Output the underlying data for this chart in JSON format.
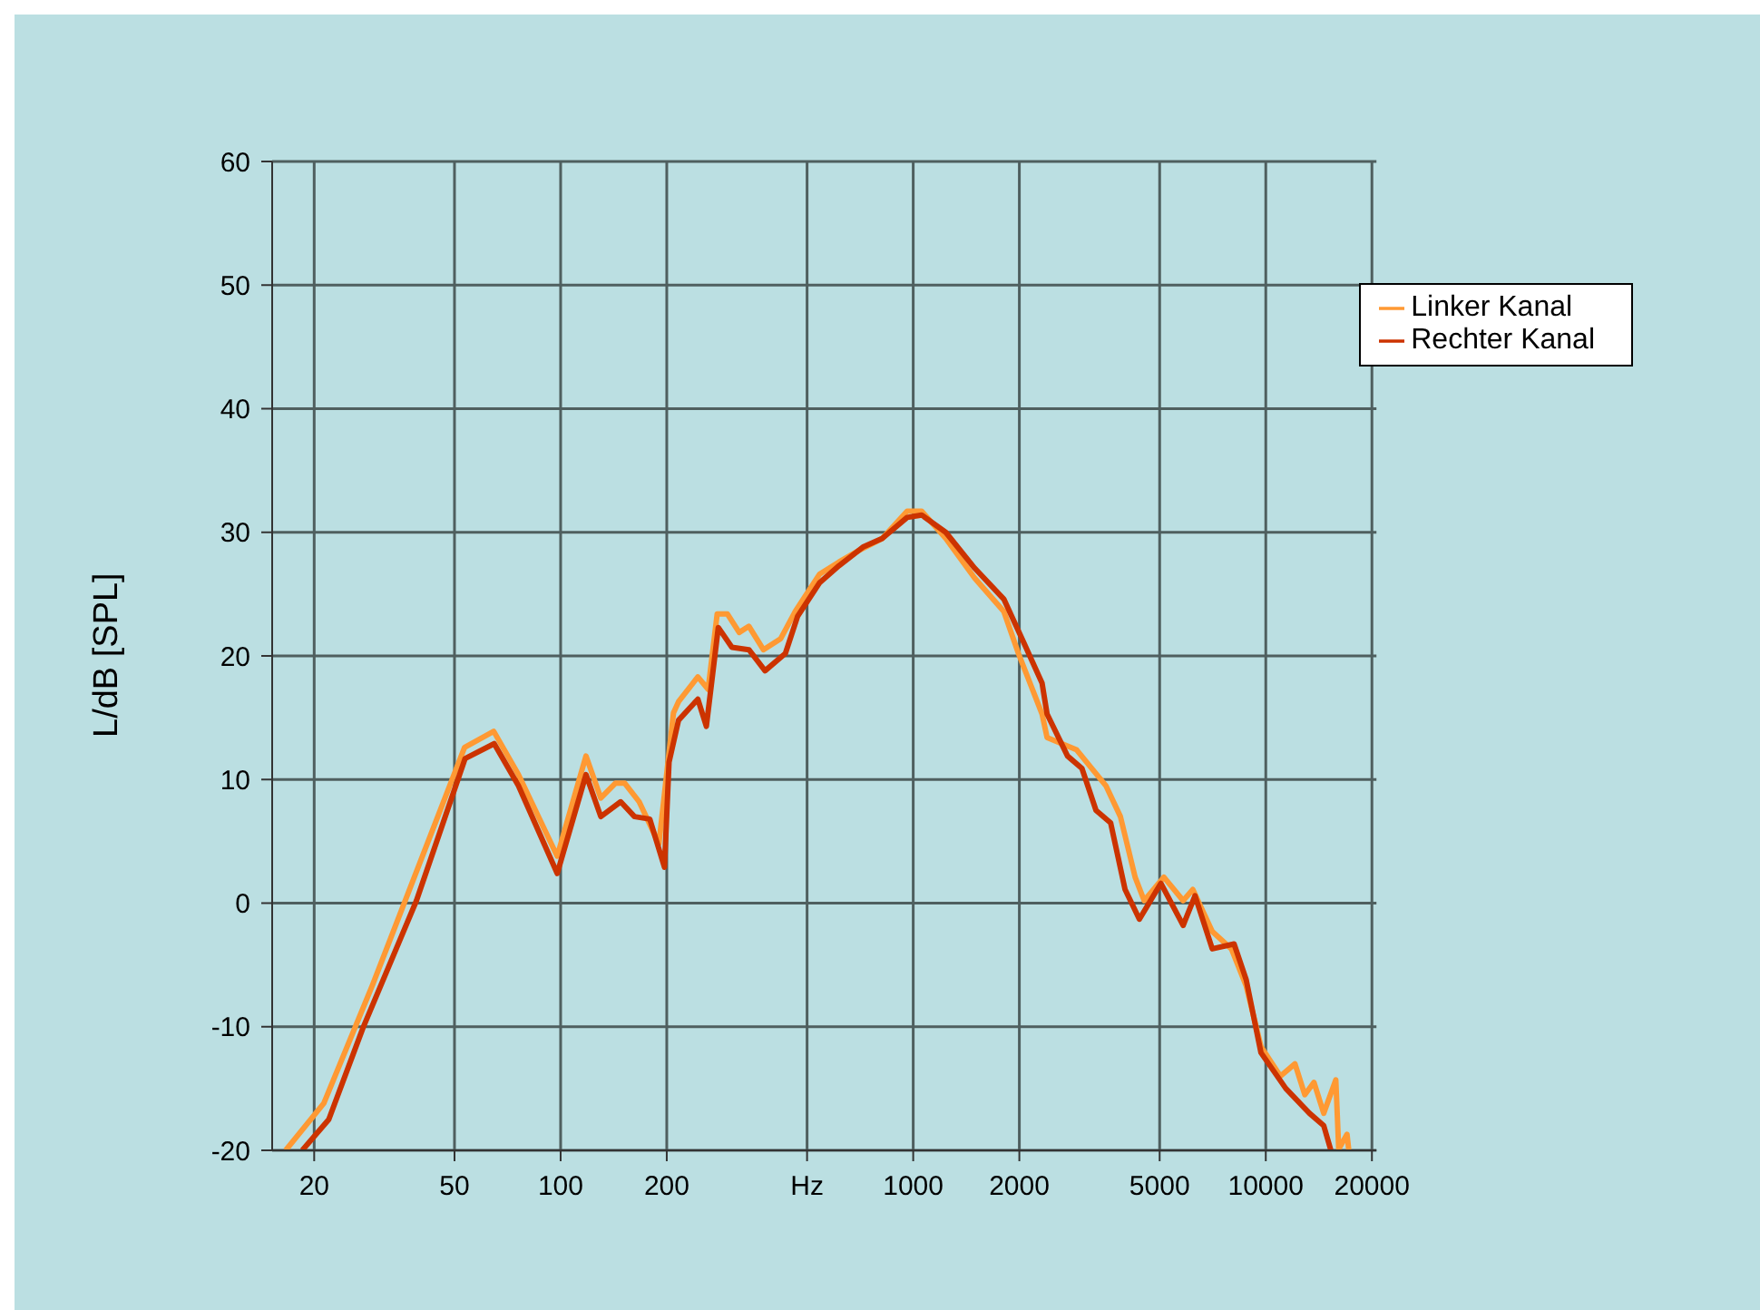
{
  "chart_data": {
    "type": "line",
    "ylabel": "L/dB [SPL]",
    "log": "x",
    "grid": true,
    "legend": "top right",
    "xlim": [
      15.2,
      20600
    ],
    "ylim": [
      -20,
      60
    ],
    "xticks": [
      20,
      50,
      100,
      200,
      {
        "value": 500,
        "label": "Hz"
      },
      1000,
      2000,
      5000,
      10000,
      20000
    ],
    "yticks": [
      -20,
      -10,
      0,
      10,
      20,
      30,
      40,
      50,
      60
    ],
    "series": [
      {
        "name": "Linker Kanal",
        "color": "#ff9933",
        "x": [
          16.6,
          21.3,
          29.3,
          53.4,
          64.6,
          75.9,
          97.8,
          118,
          130,
          143,
          152,
          167,
          190,
          209,
          216,
          245,
          262,
          278,
          297,
          321,
          342,
          376,
          421,
          463,
          542,
          616,
          699,
          817,
          961,
          1057,
          1237,
          1494,
          1807,
          1988,
          2320,
          2397,
          2908,
          3520,
          3870,
          4260,
          4520,
          5140,
          5830,
          6210,
          7050,
          7990,
          8800,
          9690,
          11000,
          12100,
          12900,
          13700,
          14600,
          15800,
          16100,
          17000,
          17200
        ],
        "values": [
          -20,
          -16.2,
          -6.6,
          12.6,
          13.9,
          10.4,
          3.8,
          11.9,
          8.5,
          9.7,
          9.7,
          8.2,
          4.8,
          15.4,
          16.3,
          18.3,
          17.3,
          23.4,
          23.4,
          21.9,
          22.4,
          20.5,
          21.4,
          23.6,
          26.6,
          27.6,
          28.5,
          29.5,
          31.7,
          31.7,
          29.5,
          26.3,
          23.6,
          20.2,
          15.3,
          13.4,
          12.4,
          9.5,
          7,
          2.1,
          0.2,
          2.1,
          0.2,
          1.1,
          -2.3,
          -3.7,
          -6.7,
          -11.6,
          -14,
          -13,
          -15.5,
          -14.5,
          -17,
          -14.3,
          -19.9,
          -18.7,
          -20
        ]
      },
      {
        "name": "Rechter Kanal",
        "color": "#cc3300",
        "x": [
          18.5,
          22,
          27.5,
          39,
          53.6,
          64.8,
          75.9,
          97.8,
          118,
          130,
          148,
          162,
          179,
          197,
          203,
          216,
          245,
          259,
          280,
          306,
          342,
          380,
          434,
          470,
          542,
          616,
          720,
          817,
          961,
          1057,
          1237,
          1494,
          1807,
          2050,
          2320,
          2397,
          2740,
          3010,
          3300,
          3630,
          3990,
          4380,
          5040,
          5830,
          6300,
          7050,
          8130,
          8800,
          9690,
          11400,
          13300,
          14600,
          15300
        ],
        "values": [
          -20,
          -17.5,
          -10.1,
          0.2,
          11.7,
          12.9,
          9.5,
          2.4,
          10.4,
          7,
          8.2,
          7,
          6.8,
          2.9,
          11.4,
          14.8,
          16.5,
          14.3,
          22.3,
          20.7,
          20.5,
          18.8,
          20.2,
          23.2,
          25.9,
          27.3,
          28.8,
          29.5,
          31.2,
          31.4,
          30,
          27.1,
          24.6,
          21.2,
          17.8,
          15.3,
          11.9,
          10.9,
          7.5,
          6.5,
          1.1,
          -1.3,
          1.6,
          -1.8,
          0.6,
          -3.7,
          -3.3,
          -6.2,
          -12.1,
          -15,
          -17,
          -18,
          -20
        ]
      }
    ]
  }
}
